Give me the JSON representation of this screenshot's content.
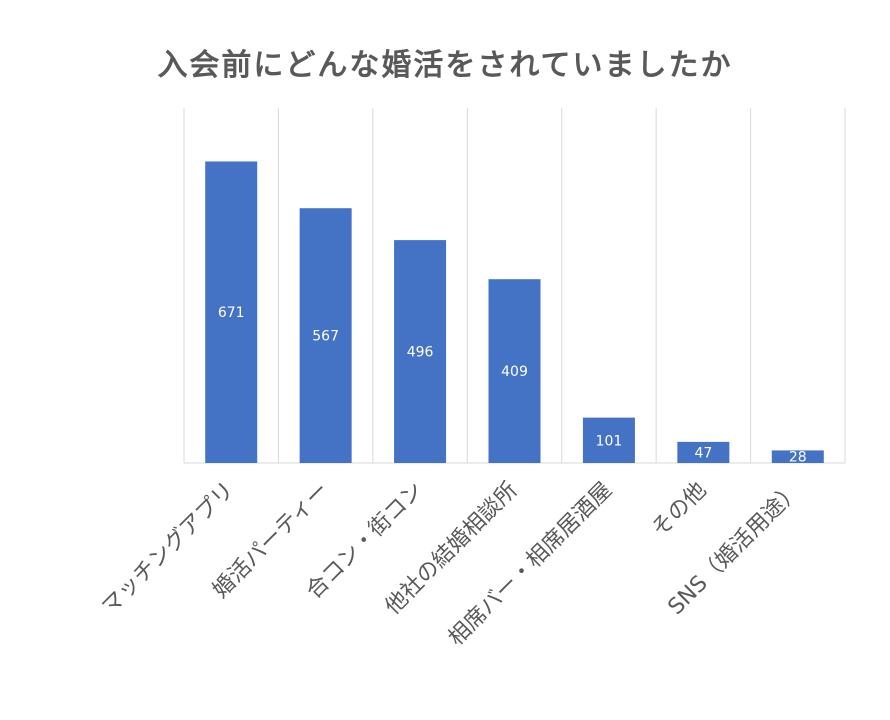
{
  "chart_data": {
    "type": "bar",
    "title": "入会前にどんな婚活をされていましたか",
    "categories": [
      "マッチングアプリ",
      "婚活パーティー",
      "合コン・街コン",
      "他社の結婚相談所",
      "相席バー・相席居酒屋",
      "その他",
      "SNS（婚活用途）"
    ],
    "values": [
      671,
      567,
      496,
      409,
      101,
      47,
      28
    ],
    "xlabel": "",
    "ylabel": "",
    "ylim": [
      0,
      790
    ],
    "grid": "vertical-category-separators",
    "legend": "none",
    "data_labels": "center",
    "colors": {
      "bar": "#4472C4",
      "grid": "#d9d9d9",
      "text": "#595959",
      "label": "#ffffff"
    }
  }
}
